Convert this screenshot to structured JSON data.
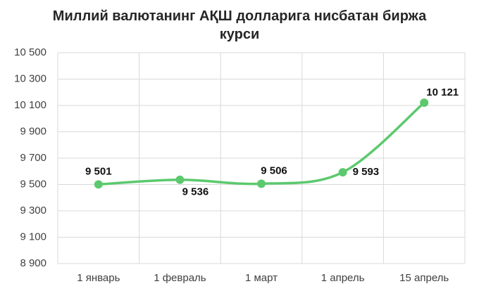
{
  "chart_data": {
    "type": "line",
    "title": "Миллий валютанинг АҚШ долларига нисбатан биржа курси",
    "categories": [
      "1 январь",
      "1 февраль",
      "1 март",
      "1 апрель",
      "15 апрель"
    ],
    "series": [
      {
        "color": "#5cc96e",
        "values": [
          9501,
          9536,
          9506,
          9593,
          10121
        ],
        "value_labels": [
          "9 501",
          "9 536",
          "9 506",
          "9 593",
          "10 121"
        ]
      }
    ],
    "ylim": [
      8900,
      10500
    ],
    "yticks": [
      {
        "value": 8900,
        "label": "8 900"
      },
      {
        "value": 9100,
        "label": "9 100"
      },
      {
        "value": 9300,
        "label": "9 300"
      },
      {
        "value": 9500,
        "label": "9 500"
      },
      {
        "value": 9700,
        "label": "9 700"
      },
      {
        "value": 9900,
        "label": "9 900"
      },
      {
        "value": 10100,
        "label": "10 100"
      },
      {
        "value": 10300,
        "label": "10 300"
      },
      {
        "value": 10500,
        "label": "10 500"
      }
    ],
    "grid": true,
    "smooth": true
  }
}
